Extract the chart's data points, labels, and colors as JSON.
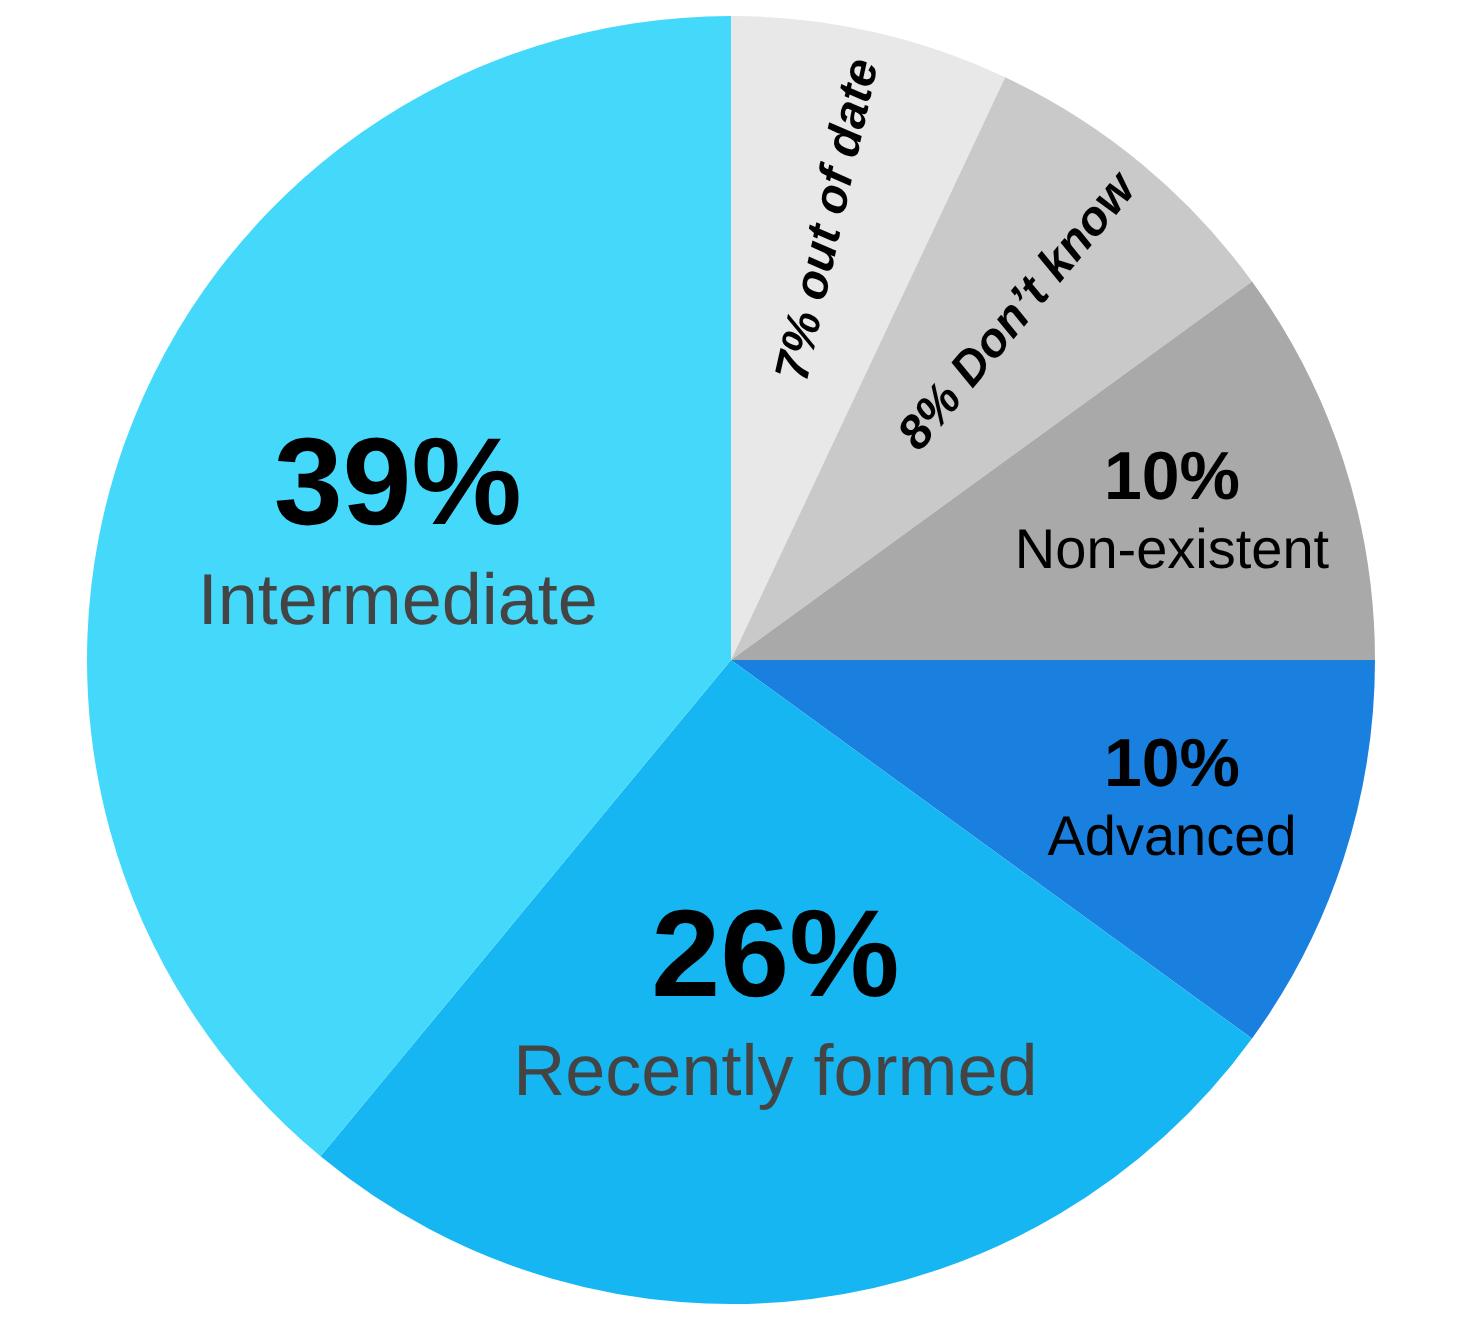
{
  "chart_data": {
    "type": "pie",
    "categories": [
      "out of date",
      "Don’t know",
      "Non-existent",
      "Advanced",
      "Recently formed",
      "Intermediate"
    ],
    "values": [
      7,
      8,
      10,
      10,
      26,
      39
    ],
    "value_labels": [
      "7%",
      "8%",
      "10%",
      "10%",
      "26%",
      "39%"
    ],
    "colors": [
      "#e8e8e8",
      "#c9c9c9",
      "#a9a9a9",
      "#1a80e0",
      "#16b6f2",
      "#44d9fb"
    ],
    "legend": false
  }
}
